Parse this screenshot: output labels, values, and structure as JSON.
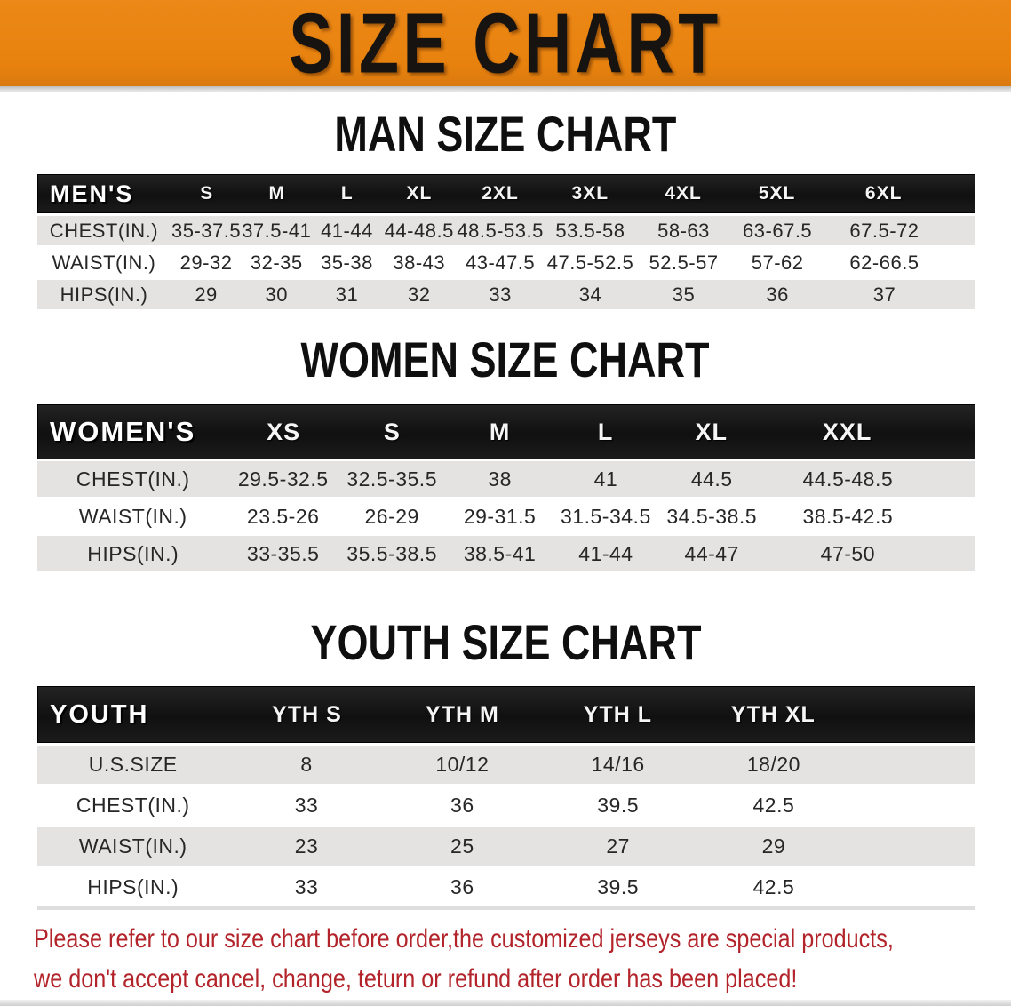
{
  "banner": {
    "title": "SIZE CHART",
    "bg_color": "#e8820e"
  },
  "colors": {
    "banner_orange": "#e8820e",
    "header_black": "#141414",
    "row_gray": "#e4e3e1",
    "row_white": "#ffffff",
    "note_red": "#b2232a"
  },
  "man": {
    "heading": "MAN SIZE CHART",
    "corner_label": "MEN'S",
    "sizes": [
      "S",
      "M",
      "L",
      "XL",
      "2XL",
      "3XL",
      "4XL",
      "5XL",
      "6XL"
    ],
    "rows": [
      {
        "label": "CHEST(IN.)",
        "values": [
          "35-37.5",
          "37.5-41",
          "41-44",
          "44-48.5",
          "48.5-53.5",
          "53.5-58",
          "58-63",
          "63-67.5",
          "67.5-72"
        ]
      },
      {
        "label": "WAIST(IN.)",
        "values": [
          "29-32",
          "32-35",
          "35-38",
          "38-43",
          "43-47.5",
          "47.5-52.5",
          "52.5-57",
          "57-62",
          "62-66.5"
        ]
      },
      {
        "label": "HIPS(IN.)",
        "values": [
          "29",
          "30",
          "31",
          "32",
          "33",
          "34",
          "35",
          "36",
          "37"
        ]
      }
    ]
  },
  "women": {
    "heading": "WOMEN SIZE CHART",
    "corner_label": "WOMEN'S",
    "sizes": [
      "XS",
      "S",
      "M",
      "L",
      "XL",
      "XXL"
    ],
    "rows": [
      {
        "label": "CHEST(IN.)",
        "values": [
          "29.5-32.5",
          "32.5-35.5",
          "38",
          "41",
          "44.5",
          "44.5-48.5"
        ]
      },
      {
        "label": "WAIST(IN.)",
        "values": [
          "23.5-26",
          "26-29",
          "29-31.5",
          "31.5-34.5",
          "34.5-38.5",
          "38.5-42.5"
        ]
      },
      {
        "label": "HIPS(IN.)",
        "values": [
          "33-35.5",
          "35.5-38.5",
          "38.5-41",
          "41-44",
          "44-47",
          "47-50"
        ]
      }
    ]
  },
  "youth": {
    "heading": "YOUTH SIZE CHART",
    "corner_label": "YOUTH",
    "sizes": [
      "YTH S",
      "YTH M",
      "YTH L",
      "YTH XL"
    ],
    "rows": [
      {
        "label": "U.S.SIZE",
        "values": [
          "8",
          "10/12",
          "14/16",
          "18/20"
        ]
      },
      {
        "label": "CHEST(IN.)",
        "values": [
          "33",
          "36",
          "39.5",
          "42.5"
        ]
      },
      {
        "label": "WAIST(IN.)",
        "values": [
          "23",
          "25",
          "27",
          "29"
        ]
      },
      {
        "label": "HIPS(IN.)",
        "values": [
          "33",
          "36",
          "39.5",
          "42.5"
        ]
      }
    ]
  },
  "note": {
    "line1": "Please refer to our size chart before order,the customized jerseys are special products,",
    "line2": "we don't accept cancel, change, teturn or refund after order has been placed!"
  }
}
